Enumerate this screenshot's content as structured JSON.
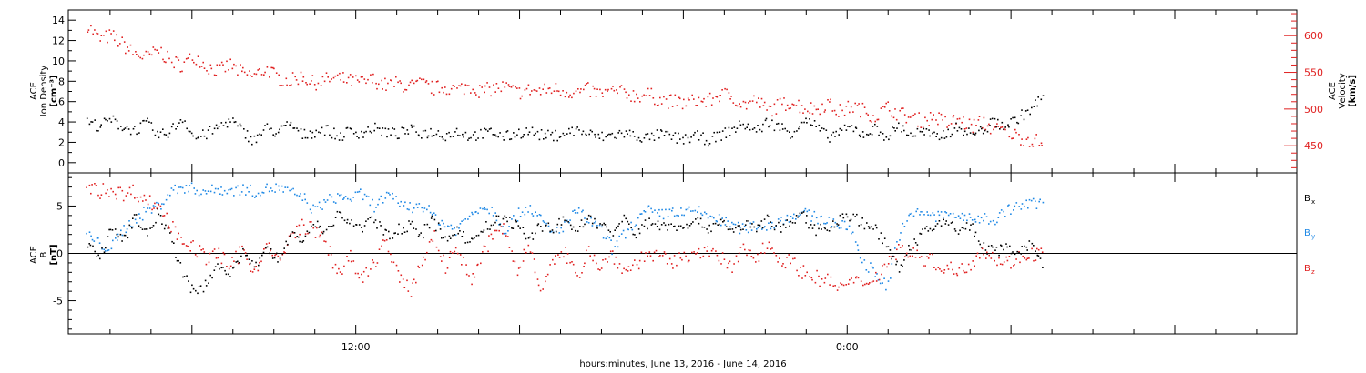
{
  "chart_data": [
    {
      "type": "scatter",
      "panel": "ace-plasma",
      "ylabel_left": [
        "ACE",
        "Ion Density",
        "[cm⁻³]"
      ],
      "ylabel_right": [
        "ACE",
        "Velocity",
        "[km/s]"
      ],
      "ylim_left": [
        -1,
        15
      ],
      "ylim_right": [
        413,
        635
      ],
      "yticks_left": [
        0,
        2,
        4,
        6,
        8,
        10,
        12,
        14
      ],
      "yticks_right": [
        450,
        500,
        550,
        600
      ],
      "grid": false,
      "series": [
        {
          "axis": "left",
          "color": "#000000",
          "x": [
            0,
            1,
            2,
            3,
            4,
            5,
            6,
            7,
            8,
            9,
            10,
            11,
            12,
            13,
            14,
            15,
            16,
            17,
            18,
            19,
            20,
            21,
            22,
            23,
            24,
            25,
            26,
            27,
            28,
            29,
            30,
            31,
            32,
            33,
            34,
            35,
            36,
            37,
            38,
            39,
            40,
            41,
            42,
            43,
            44,
            45,
            46,
            47,
            48,
            49,
            50,
            51,
            52,
            53,
            54,
            55,
            56,
            57,
            58,
            59,
            60,
            61,
            62,
            63,
            64,
            65,
            66,
            67,
            68,
            69,
            70,
            71,
            72,
            73,
            74,
            75,
            76,
            77,
            78,
            79,
            80
          ],
          "y": [
            4.0,
            3.6,
            4.2,
            3.5,
            3.2,
            3.9,
            2.6,
            3.1,
            4.4,
            2.4,
            2.8,
            3.5,
            4.2,
            3.1,
            2.2,
            3.4,
            2.9,
            3.8,
            2.7,
            3.0,
            3.3,
            2.5,
            3.1,
            2.9,
            3.4,
            3.0,
            2.8,
            3.2,
            2.9,
            3.0,
            2.7,
            3.1,
            2.6,
            2.8,
            3.0,
            2.5,
            2.9,
            3.1,
            2.7,
            2.6,
            2.9,
            3.2,
            2.8,
            2.5,
            2.7,
            2.9,
            2.6,
            2.4,
            2.8,
            2.5,
            2.3,
            2.6,
            2.2,
            2.7,
            3.2,
            3.8,
            3.1,
            4.0,
            3.5,
            2.9,
            4.2,
            3.6,
            2.5,
            3.0,
            3.4,
            2.8,
            3.3,
            2.6,
            3.6,
            2.7,
            3.1,
            2.4,
            2.9,
            3.5,
            2.8,
            3.2,
            4.0,
            3.6,
            4.4,
            5.2,
            6.5
          ]
        },
        {
          "axis": "right",
          "color": "#e02020",
          "x": [
            0,
            1,
            2,
            3,
            4,
            5,
            6,
            7,
            8,
            9,
            10,
            11,
            12,
            13,
            14,
            15,
            16,
            17,
            18,
            19,
            20,
            21,
            22,
            23,
            24,
            25,
            26,
            27,
            28,
            29,
            30,
            31,
            32,
            33,
            34,
            35,
            36,
            37,
            38,
            39,
            40,
            41,
            42,
            43,
            44,
            45,
            46,
            47,
            48,
            49,
            50,
            51,
            52,
            53,
            54,
            55,
            56,
            57,
            58,
            59,
            60,
            61,
            62,
            63,
            64,
            65,
            66,
            67,
            68,
            69,
            70,
            71,
            72,
            73,
            74,
            75,
            76,
            77,
            78,
            79,
            80
          ],
          "y": [
            615,
            595,
            600,
            588,
            575,
            570,
            580,
            565,
            560,
            572,
            558,
            552,
            560,
            548,
            545,
            555,
            542,
            538,
            545,
            535,
            540,
            542,
            538,
            536,
            540,
            532,
            535,
            530,
            534,
            528,
            530,
            526,
            532,
            524,
            528,
            530,
            522,
            526,
            524,
            528,
            525,
            522,
            526,
            520,
            524,
            522,
            518,
            520,
            512,
            510,
            508,
            512,
            510,
            520,
            518,
            505,
            512,
            498,
            505,
            510,
            502,
            500,
            508,
            496,
            504,
            498,
            490,
            502,
            494,
            488,
            484,
            490,
            480,
            486,
            476,
            482,
            472,
            470,
            462,
            458,
            455
          ]
        }
      ]
    },
    {
      "type": "scatter",
      "panel": "ace-magnetic-field",
      "ylabel_left": [
        "ACE",
        "B",
        "[nT]"
      ],
      "ylim": [
        -8.5,
        8.5
      ],
      "yticks": [
        -5,
        0,
        5
      ],
      "zero_line": true,
      "grid": false,
      "xlabel": "hours:minutes, June 13, 2016 - June 14, 2016",
      "xticks": [
        {
          "label": "12:00",
          "frac": 0.234
        },
        {
          "label": "0:00",
          "frac": 0.634
        }
      ],
      "series": [
        {
          "name": "Bx",
          "label_main": "B",
          "label_sub": "x",
          "color": "#000000",
          "x": [
            0,
            1,
            2,
            3,
            4,
            5,
            6,
            7,
            8,
            9,
            10,
            11,
            12,
            13,
            14,
            15,
            16,
            17,
            18,
            19,
            20,
            21,
            22,
            23,
            24,
            25,
            26,
            27,
            28,
            29,
            30,
            31,
            32,
            33,
            34,
            35,
            36,
            37,
            38,
            39,
            40,
            41,
            42,
            43,
            44,
            45,
            46,
            47,
            48,
            49,
            50,
            51,
            52,
            53,
            54,
            55,
            56,
            57,
            58,
            59,
            60,
            61,
            62,
            63,
            64,
            65,
            66,
            67,
            68,
            69,
            70,
            71,
            72,
            73,
            74,
            75,
            76,
            77,
            78,
            79,
            80
          ],
          "y": [
            1.0,
            -0.5,
            2.5,
            1.2,
            3.8,
            2.0,
            4.5,
            1.5,
            -2.0,
            -4.5,
            -3.0,
            -1.0,
            -2.5,
            0.0,
            -1.5,
            1.0,
            -0.8,
            2.0,
            1.5,
            3.0,
            2.5,
            4.0,
            3.5,
            2.5,
            3.8,
            1.8,
            2.5,
            3.0,
            2.0,
            3.5,
            1.2,
            2.8,
            1.0,
            2.5,
            3.2,
            3.8,
            2.8,
            1.5,
            3.0,
            2.6,
            3.5,
            2.5,
            3.8,
            3.0,
            2.2,
            3.6,
            2.0,
            3.3,
            3.0,
            2.8,
            3.1,
            3.3,
            2.7,
            3.4,
            2.5,
            3.0,
            2.8,
            3.5,
            2.6,
            3.4,
            3.9,
            2.5,
            2.8,
            3.6,
            4.0,
            3.2,
            2.6,
            0.5,
            -1.5,
            0.8,
            2.0,
            2.8,
            3.5,
            2.4,
            3.0,
            0.6,
            0.3,
            0.5,
            0.4,
            0.8,
            -1.0
          ]
        },
        {
          "name": "By",
          "label_main": "B",
          "label_sub": "y",
          "color": "#1e88e5",
          "x": [
            0,
            1,
            2,
            3,
            4,
            5,
            6,
            7,
            8,
            9,
            10,
            11,
            12,
            13,
            14,
            15,
            16,
            17,
            18,
            19,
            20,
            21,
            22,
            23,
            24,
            25,
            26,
            27,
            28,
            29,
            30,
            31,
            32,
            33,
            34,
            35,
            36,
            37,
            38,
            39,
            40,
            41,
            42,
            43,
            44,
            45,
            46,
            47,
            48,
            49,
            50,
            51,
            52,
            53,
            54,
            55,
            56,
            57,
            58,
            59,
            60,
            61,
            62,
            63,
            64,
            65,
            66,
            67,
            68,
            69,
            70,
            71,
            72,
            73,
            74,
            75,
            76,
            77,
            78,
            79,
            80
          ],
          "y": [
            2.0,
            1.0,
            0.5,
            2.5,
            3.5,
            4.5,
            5.0,
            6.5,
            7.0,
            6.8,
            6.5,
            6.8,
            6.6,
            6.8,
            6.5,
            6.8,
            6.9,
            6.4,
            6.0,
            4.5,
            5.5,
            6.0,
            5.8,
            6.2,
            5.0,
            6.0,
            5.5,
            4.8,
            5.2,
            4.0,
            3.0,
            2.5,
            4.0,
            5.0,
            4.5,
            2.5,
            4.0,
            5.0,
            3.5,
            2.0,
            3.0,
            4.5,
            3.5,
            2.5,
            0.5,
            2.0,
            3.5,
            4.5,
            4.0,
            4.5,
            4.2,
            4.5,
            4.0,
            3.5,
            3.0,
            2.5,
            3.0,
            2.8,
            3.5,
            4.0,
            4.2,
            3.8,
            3.5,
            3.0,
            2.5,
            -1.0,
            -2.0,
            -3.5,
            2.0,
            4.0,
            4.5,
            3.8,
            4.2,
            4.0,
            3.5,
            3.8,
            3.5,
            4.5,
            5.0,
            5.2,
            5.4
          ]
        },
        {
          "name": "Bz",
          "label_main": "B",
          "label_sub": "z",
          "color": "#e02020",
          "x": [
            0,
            1,
            2,
            3,
            4,
            5,
            6,
            7,
            8,
            9,
            10,
            11,
            12,
            13,
            14,
            15,
            16,
            17,
            18,
            19,
            20,
            21,
            22,
            23,
            24,
            25,
            26,
            27,
            28,
            29,
            30,
            31,
            32,
            33,
            34,
            35,
            36,
            37,
            38,
            39,
            40,
            41,
            42,
            43,
            44,
            45,
            46,
            47,
            48,
            49,
            50,
            51,
            52,
            53,
            54,
            55,
            56,
            57,
            58,
            59,
            60,
            61,
            62,
            63,
            64,
            65,
            66,
            67,
            68,
            69,
            70,
            71,
            72,
            73,
            74,
            75,
            76,
            77,
            78,
            79,
            80
          ],
          "y": [
            7.0,
            6.5,
            6.8,
            6.2,
            6.6,
            5.5,
            5.0,
            3.0,
            1.5,
            0.5,
            -0.5,
            0.0,
            -1.5,
            0.5,
            -2.0,
            1.0,
            -1.0,
            1.5,
            3.0,
            2.5,
            1.0,
            -2.0,
            -0.5,
            -3.0,
            -1.0,
            1.5,
            -2.5,
            -4.0,
            -1.0,
            2.0,
            -1.5,
            1.0,
            -3.0,
            -0.5,
            2.0,
            2.5,
            -2.0,
            1.0,
            -3.5,
            -1.0,
            0.0,
            -2.5,
            0.5,
            -1.5,
            0.0,
            -2.0,
            -1.0,
            0.0,
            -0.5,
            -1.0,
            -0.5,
            0.5,
            0.0,
            -0.5,
            -1.5,
            0.5,
            -0.5,
            1.0,
            -0.5,
            -1.0,
            -2.0,
            -2.5,
            -3.0,
            -3.5,
            -3.2,
            -3.0,
            -2.5,
            -1.0,
            0.5,
            0.0,
            -0.5,
            -1.0,
            -1.5,
            -2.0,
            -1.0,
            0.5,
            -0.5,
            -1.0,
            -0.5,
            0.0,
            0.0
          ]
        }
      ]
    }
  ]
}
